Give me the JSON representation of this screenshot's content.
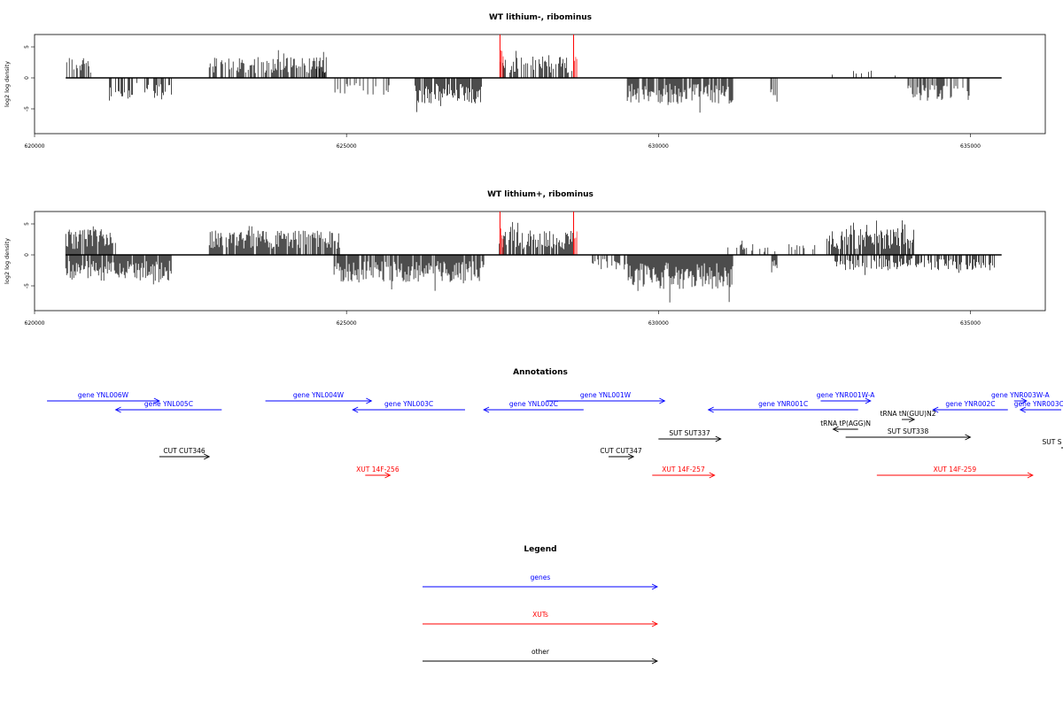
{
  "chart_data": [
    {
      "type": "bar",
      "title": "WT lithium-, ribominus",
      "ylabel": "log2 log density",
      "xlabel": "",
      "xlim": [
        620000,
        636200
      ],
      "ylim": [
        -9,
        7
      ],
      "x_ticks": [
        "620000",
        "625000",
        "630000",
        "635000"
      ],
      "y_ticks": [
        "5",
        "0",
        "-5"
      ],
      "baseline": {
        "from": 620500,
        "to": 635500
      },
      "grid": false,
      "segments": [
        {
          "sign": 1,
          "from": 620500,
          "to": 620900,
          "mag": 3.2,
          "density": 0.55
        },
        {
          "sign": -1,
          "from": 621200,
          "to": 622200,
          "mag": 3.2,
          "density": 0.45
        },
        {
          "sign": 1,
          "from": 622800,
          "to": 624700,
          "mag": 3.1,
          "density": 0.7
        },
        {
          "sign": 1,
          "from": 624500,
          "to": 624700,
          "mag": 2.0,
          "density": 0.4
        },
        {
          "sign": -1,
          "from": 624800,
          "to": 625700,
          "mag": 2.5,
          "density": 0.35
        },
        {
          "sign": -1,
          "from": 626100,
          "to": 627200,
          "mag": 3.8,
          "density": 0.8
        },
        {
          "sign": 1,
          "from": 627450,
          "to": 628650,
          "mag": 3.2,
          "density": 0.6
        },
        {
          "sign": -1,
          "from": 629500,
          "to": 631200,
          "mag": 3.8,
          "density": 0.85
        },
        {
          "sign": -1,
          "from": 631800,
          "to": 631900,
          "mag": 3.0,
          "density": 0.6
        },
        {
          "sign": 1,
          "from": 632600,
          "to": 633800,
          "mag": 1.4,
          "density": 0.12
        },
        {
          "sign": -1,
          "from": 634000,
          "to": 635000,
          "mag": 3.4,
          "density": 0.6
        }
      ],
      "red_spikes": [
        {
          "x": 627460,
          "y": 7
        },
        {
          "x": 628640,
          "y": 7
        }
      ]
    },
    {
      "type": "bar",
      "title": "WT lithium+, ribominus",
      "ylabel": "log2 log density",
      "xlabel": "",
      "xlim": [
        620000,
        636200
      ],
      "ylim": [
        -9,
        7
      ],
      "x_ticks": [
        "620000",
        "625000",
        "630000",
        "635000"
      ],
      "y_ticks": [
        "5",
        "0",
        "-5"
      ],
      "baseline": {
        "from": 620500,
        "to": 635500
      },
      "grid": false,
      "segments": [
        {
          "sign": 1,
          "from": 620500,
          "to": 621300,
          "mag": 3.8,
          "density": 0.9
        },
        {
          "sign": -1,
          "from": 620500,
          "to": 622200,
          "mag": 3.8,
          "density": 0.9
        },
        {
          "sign": 1,
          "from": 622800,
          "to": 624900,
          "mag": 3.6,
          "density": 0.9
        },
        {
          "sign": -1,
          "from": 624800,
          "to": 627200,
          "mag": 4.0,
          "density": 0.9
        },
        {
          "sign": 1,
          "from": 627450,
          "to": 628650,
          "mag": 3.6,
          "density": 0.8
        },
        {
          "sign": -1,
          "from": 628900,
          "to": 629500,
          "mag": 2.2,
          "density": 0.5
        },
        {
          "sign": -1,
          "from": 629500,
          "to": 631200,
          "mag": 5.0,
          "density": 1.0
        },
        {
          "sign": 1,
          "from": 631100,
          "to": 632600,
          "mag": 1.6,
          "density": 0.2
        },
        {
          "sign": -1,
          "from": 631800,
          "to": 631900,
          "mag": 3.0,
          "density": 0.6
        },
        {
          "sign": 1,
          "from": 632700,
          "to": 634100,
          "mag": 3.8,
          "density": 0.9
        },
        {
          "sign": -1,
          "from": 632800,
          "to": 635400,
          "mag": 2.3,
          "density": 0.6
        }
      ],
      "red_spikes": [
        {
          "x": 627460,
          "y": 7
        },
        {
          "x": 628640,
          "y": 7
        }
      ]
    }
  ],
  "annotations": {
    "title": "Annotations",
    "colors": {
      "gene": "#0000ff",
      "xut": "#ff0000",
      "other": "#000000"
    },
    "features": [
      {
        "label": "gene YNL006W",
        "kind": "gene",
        "dir": "right",
        "from": 620200,
        "to": 622000
      },
      {
        "label": "gene YNL005C",
        "kind": "gene",
        "dir": "left",
        "from": 621300,
        "to": 623000
      },
      {
        "label": "gene YNL004W",
        "kind": "gene",
        "dir": "right",
        "from": 623700,
        "to": 625400
      },
      {
        "label": "gene YNL003C",
        "kind": "gene",
        "dir": "left",
        "from": 625100,
        "to": 626900
      },
      {
        "label": "gene YNL002C",
        "kind": "gene",
        "dir": "left",
        "from": 627200,
        "to": 628800
      },
      {
        "label": "gene YNL001W",
        "kind": "gene",
        "dir": "right",
        "from": 628200,
        "to": 630100
      },
      {
        "label": "gene YNR001C",
        "kind": "gene",
        "dir": "left",
        "from": 630800,
        "to": 633200
      },
      {
        "label": "gene YNR001W-A",
        "kind": "gene",
        "dir": "right",
        "from": 632600,
        "to": 633400
      },
      {
        "label": "gene YNR002C",
        "kind": "gene",
        "dir": "left",
        "from": 634400,
        "to": 635600
      },
      {
        "label": "gene YNR003W-A",
        "kind": "gene",
        "dir": "right",
        "from": 635700,
        "to": 635900
      },
      {
        "label": "gene YNR003C",
        "kind": "gene",
        "dir": "left",
        "from": 635800,
        "to": 637400
      },
      {
        "label": "tRNA tN(GUU)N2",
        "kind": "other",
        "dir": "right",
        "from": 633900,
        "to": 634100
      },
      {
        "label": "tRNA tP(AGG)N",
        "kind": "other",
        "dir": "left",
        "from": 632800,
        "to": 633200
      },
      {
        "label": "SUT SUT337",
        "kind": "other",
        "dir": "right",
        "from": 630000,
        "to": 631000
      },
      {
        "label": "SUT SUT338",
        "kind": "other",
        "dir": "right",
        "from": 633000,
        "to": 635000
      },
      {
        "label": "SUT S",
        "kind": "other",
        "dir": "left",
        "from": 636800,
        "to": 638000
      },
      {
        "label": "CUT CUT346",
        "kind": "other",
        "dir": "right",
        "from": 622000,
        "to": 622800
      },
      {
        "label": "CUT CUT347",
        "kind": "other",
        "dir": "right",
        "from": 629200,
        "to": 629600
      },
      {
        "label": "XUT 14F-256",
        "kind": "xut",
        "dir": "right",
        "from": 625300,
        "to": 625700
      },
      {
        "label": "XUT 14F-257",
        "kind": "xut",
        "dir": "right",
        "from": 629900,
        "to": 630900
      },
      {
        "label": "XUT 14F-259",
        "kind": "xut",
        "dir": "right",
        "from": 633500,
        "to": 636000
      }
    ]
  },
  "legend": {
    "title": "Legend",
    "items": [
      {
        "label": "genes",
        "color": "#0000ff"
      },
      {
        "label": "XUTs",
        "color": "#ff0000"
      },
      {
        "label": "other",
        "color": "#000000"
      }
    ]
  }
}
